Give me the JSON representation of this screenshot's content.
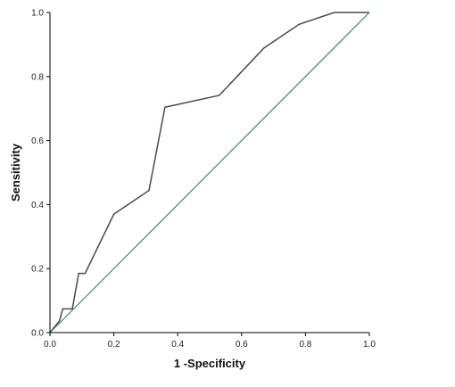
{
  "chart_data": {
    "type": "line",
    "title": "",
    "xlabel": "1 -Specificity",
    "ylabel": "Sensitivity",
    "xlim": [
      0.0,
      1.0
    ],
    "ylim": [
      0.0,
      1.0
    ],
    "x_ticks": [
      "0.0",
      "0.2",
      "0.4",
      "0.6",
      "0.8",
      "1.0"
    ],
    "y_ticks": [
      "0.0",
      "0.2",
      "0.4",
      "0.6",
      "0.8",
      "1.0"
    ],
    "grid": false,
    "legend": "none",
    "series": [
      {
        "color": "#4a4a4a",
        "x": [
          0.0,
          0.0,
          0.03,
          0.04,
          0.07,
          0.09,
          0.11,
          0.2,
          0.31,
          0.36,
          0.53,
          0.67,
          0.78,
          0.89,
          1.0
        ],
        "y": [
          0.0,
          0.0,
          0.037,
          0.074,
          0.074,
          0.185,
          0.185,
          0.37,
          0.444,
          0.704,
          0.741,
          0.889,
          0.963,
          1.0,
          1.0
        ]
      },
      {
        "color": "#2f8f6a",
        "x": [
          0.0,
          1.0
        ],
        "y": [
          0.0,
          1.0
        ]
      }
    ]
  }
}
